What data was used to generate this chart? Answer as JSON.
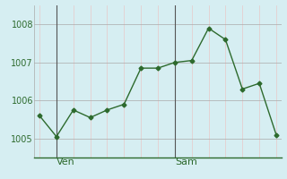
{
  "x_values": [
    0,
    1,
    2,
    3,
    4,
    5,
    6,
    7,
    8,
    9,
    10,
    11,
    12,
    13,
    14
  ],
  "y_values": [
    1005.6,
    1005.05,
    1005.75,
    1005.55,
    1005.75,
    1005.9,
    1006.85,
    1006.85,
    1007.0,
    1007.05,
    1007.9,
    1007.6,
    1006.3,
    1006.45,
    1005.1
  ],
  "ven_x": 1,
  "sam_x": 8,
  "yticks": [
    1005,
    1006,
    1007,
    1008
  ],
  "ylim": [
    1004.5,
    1008.5
  ],
  "xlim": [
    -0.3,
    14.3
  ],
  "line_color": "#2d6a2d",
  "marker_color": "#2d6a2d",
  "bg_color": "#d6eef2",
  "grid_color_major": "#aaaaaa",
  "grid_color_minor": "#e8c8c8",
  "label_color": "#2d6a2d",
  "tick_label_fontsize": 7,
  "day_label_fontsize": 8,
  "ven_label": "Ven",
  "sam_label": "Sam"
}
